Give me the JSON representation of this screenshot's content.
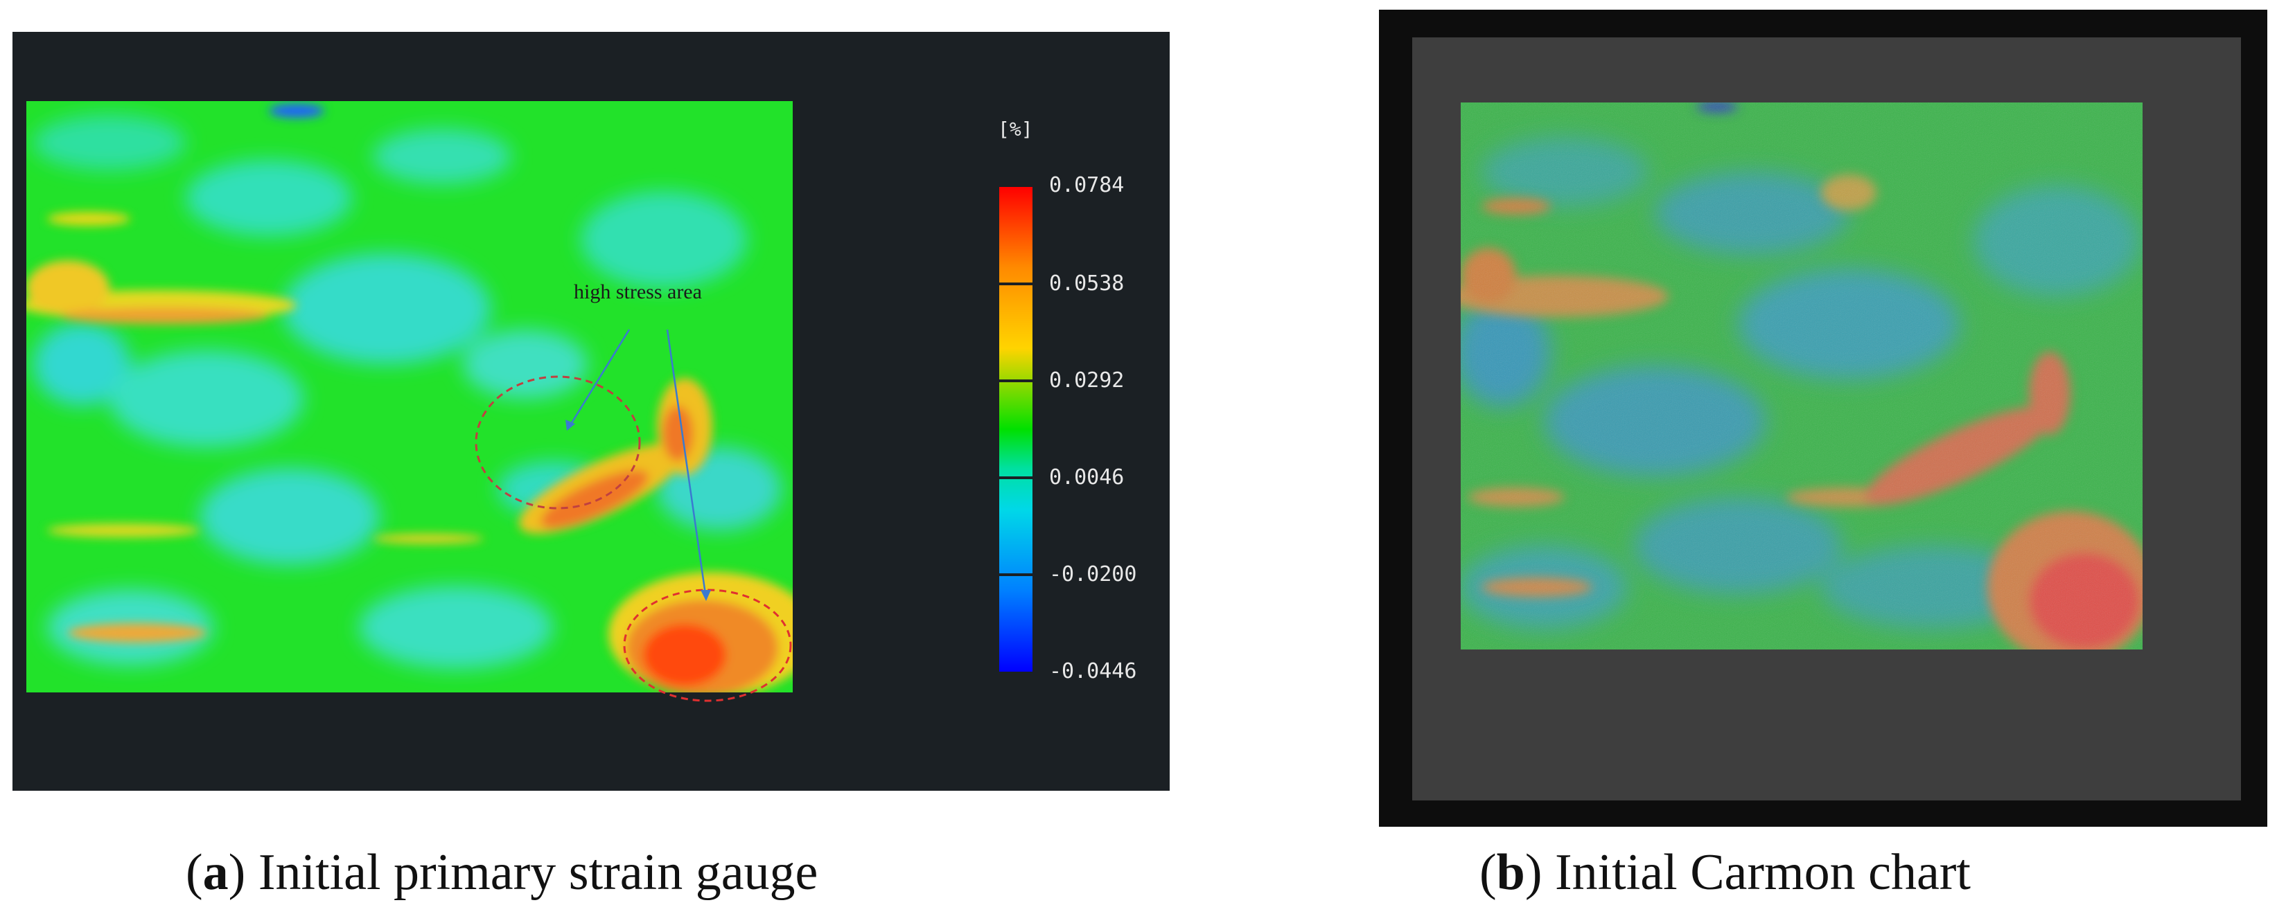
{
  "panel_a": {
    "colorbar": {
      "unit": "[%]",
      "labels": [
        "0.0784",
        "0.0538",
        "0.0292",
        "0.0046",
        "-0.0200",
        "-0.0446"
      ]
    },
    "annotation": "high stress area"
  },
  "captions": {
    "a": {
      "letter": "a",
      "text": "Initial primary strain gauge"
    },
    "b": {
      "letter": "b",
      "text": "Initial Carmon chart"
    }
  }
}
